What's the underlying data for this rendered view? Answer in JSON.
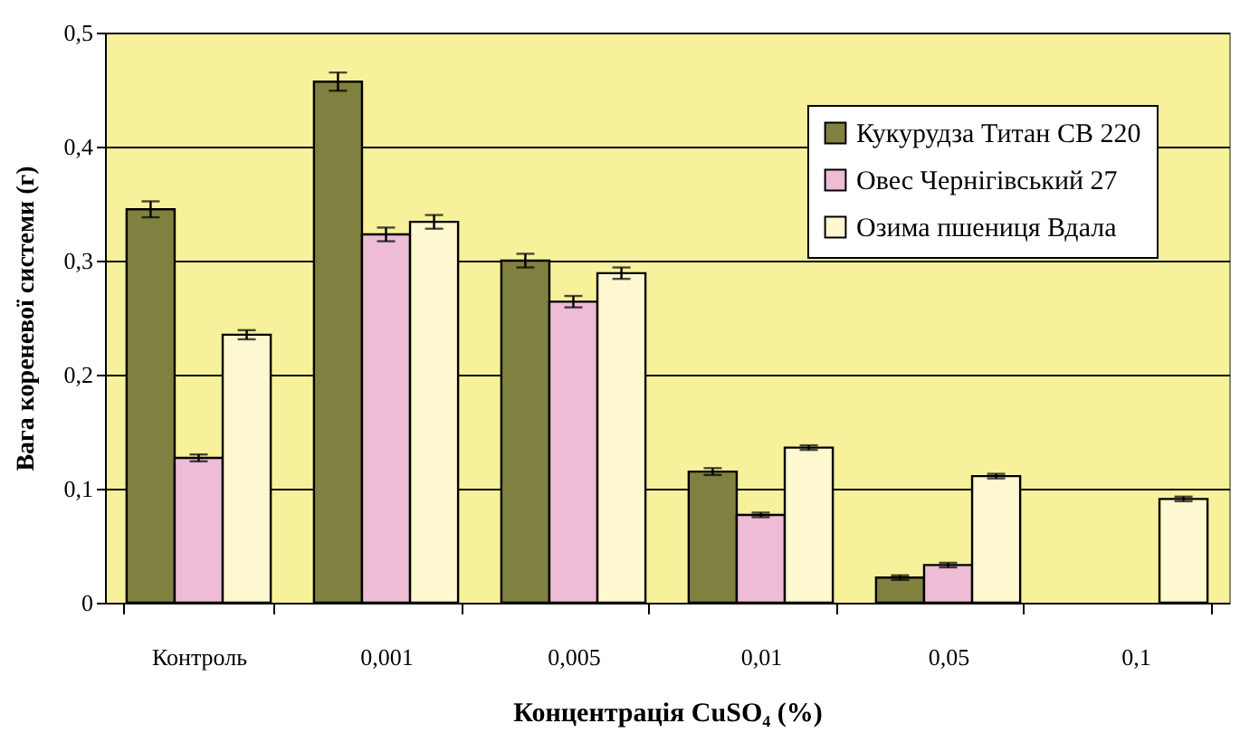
{
  "chart_data": {
    "type": "bar",
    "xlabel": "Концентрація CuSO₄ (%)",
    "ylabel": "Вага кореневої системи (г)",
    "categories": [
      "Контроль",
      "0,001",
      "0,005",
      "0,01",
      "0,05",
      "0,1"
    ],
    "series": [
      {
        "name": "Кукурудза Титан СВ 220",
        "color": "#808040",
        "values": [
          0.345,
          0.457,
          0.3,
          0.115,
          0.022,
          0
        ],
        "errors": [
          0.007,
          0.008,
          0.006,
          0.003,
          0.002,
          null
        ]
      },
      {
        "name": "Овес Чернігівський 27",
        "color": "#eebcd4",
        "values": [
          0.127,
          0.323,
          0.264,
          0.077,
          0.033,
          0
        ],
        "errors": [
          0.003,
          0.006,
          0.005,
          0.002,
          0.002,
          null
        ]
      },
      {
        "name": "Озима пшениця Вдала",
        "color": "#fdf8cf",
        "values": [
          0.235,
          0.334,
          0.289,
          0.136,
          0.111,
          0.091
        ],
        "errors": [
          0.004,
          0.006,
          0.005,
          0.002,
          0.002,
          0.002
        ]
      }
    ],
    "ylim": [
      0,
      0.5
    ],
    "yticks": [
      {
        "value": 0,
        "label": "0"
      },
      {
        "value": 0.1,
        "label": "0,1"
      },
      {
        "value": 0.2,
        "label": "0,2"
      },
      {
        "value": 0.3,
        "label": "0,3"
      },
      {
        "value": 0.4,
        "label": "0,4"
      },
      {
        "value": 0.5,
        "label": "0,5"
      }
    ],
    "grid": "y",
    "legend": "top right"
  }
}
